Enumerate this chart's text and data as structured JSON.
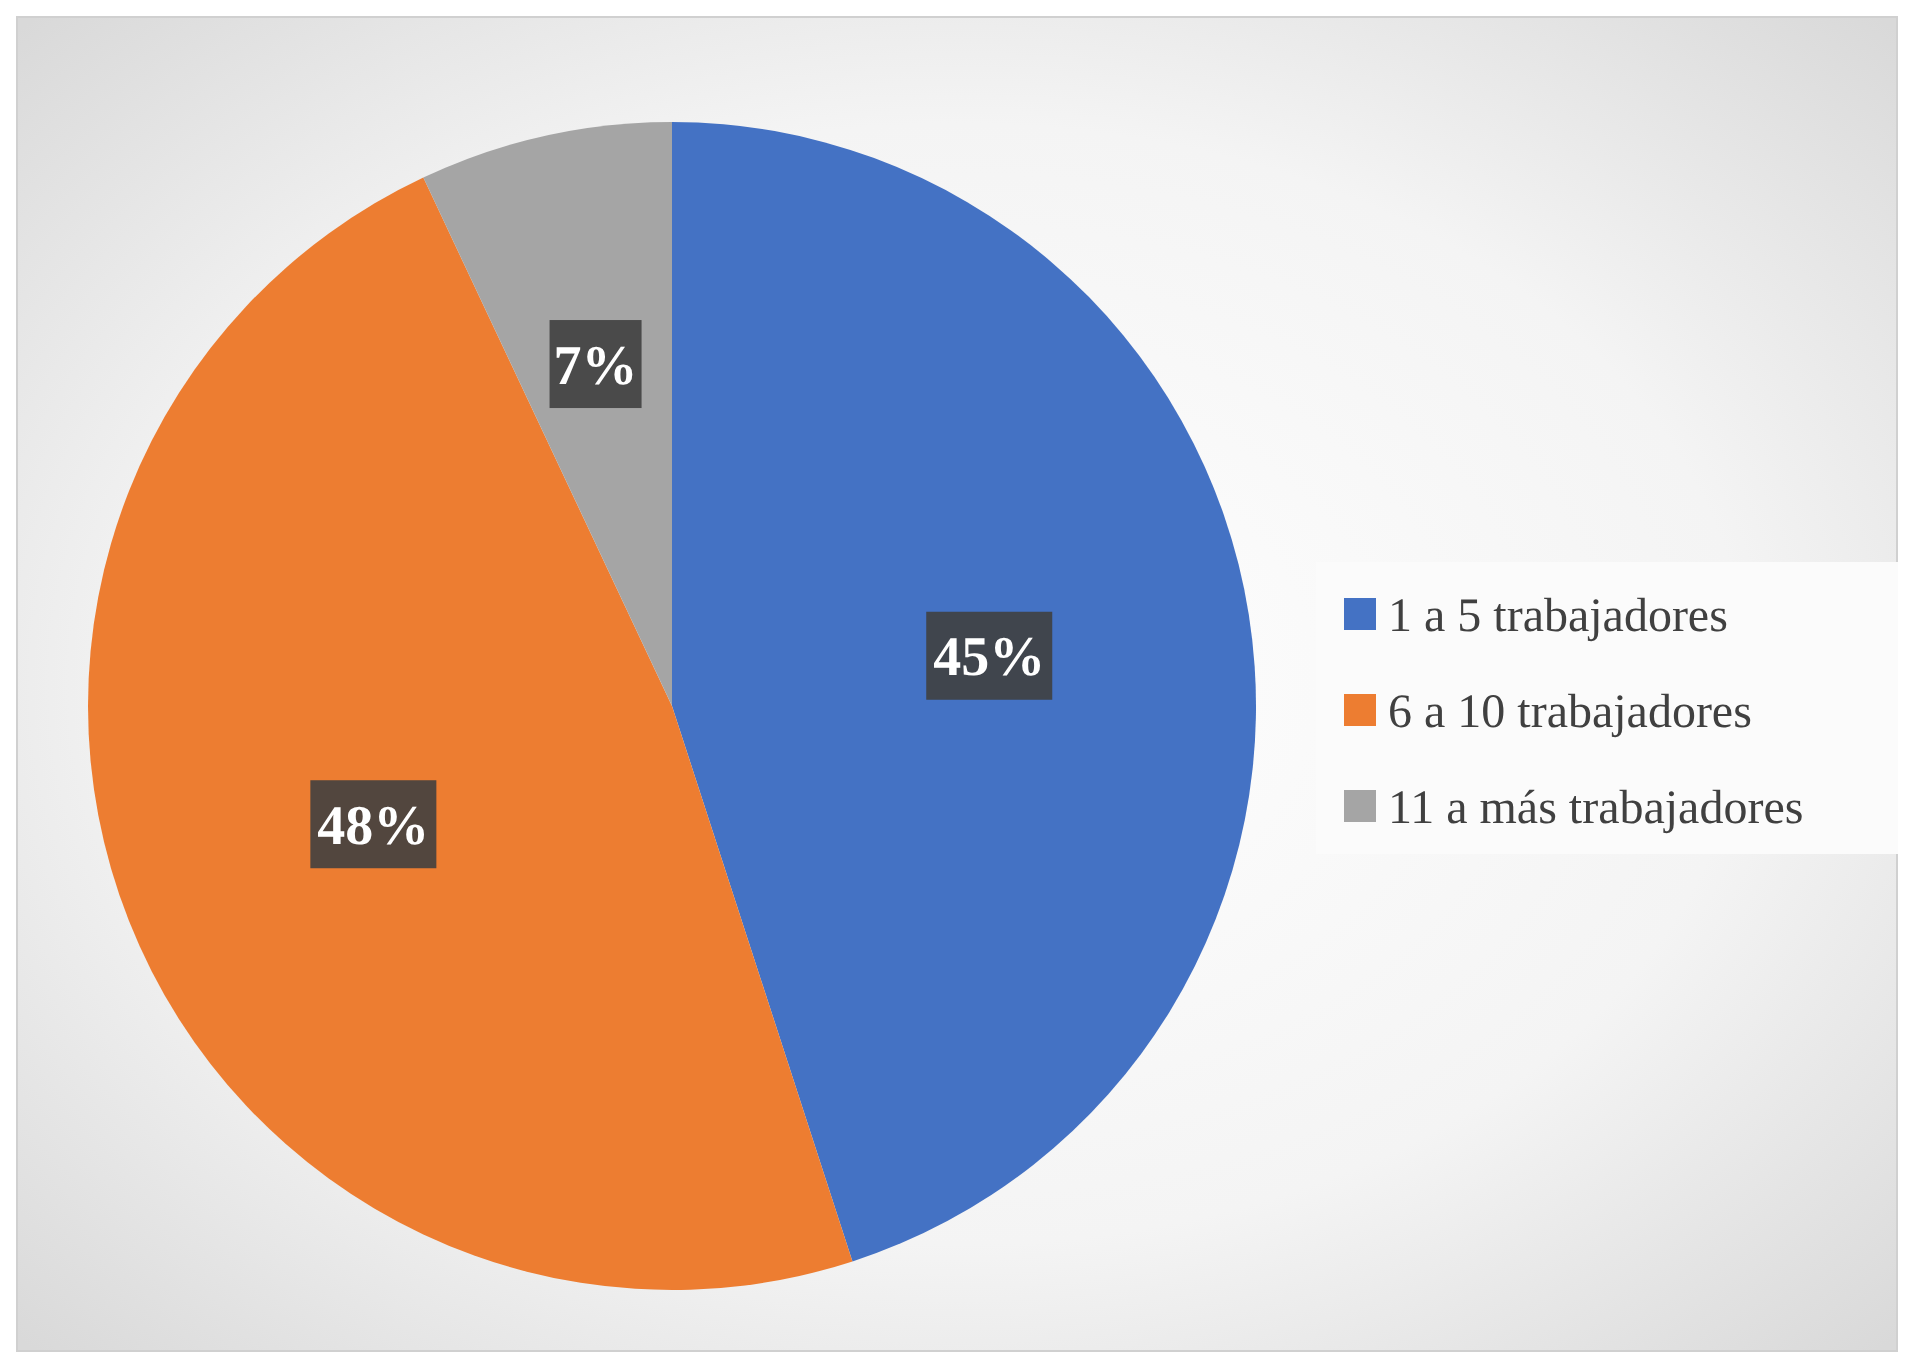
{
  "chart_data": {
    "type": "pie",
    "categories": [
      "1 a 5 trabajadores",
      "6 a 10 trabajadores",
      "11 a más trabajadores"
    ],
    "values": [
      45,
      48,
      7
    ],
    "colors": [
      "#4472c4",
      "#ed7d31",
      "#a5a5a5"
    ],
    "value_labels": [
      "45%",
      "48%",
      "7%"
    ],
    "legend": "right"
  }
}
